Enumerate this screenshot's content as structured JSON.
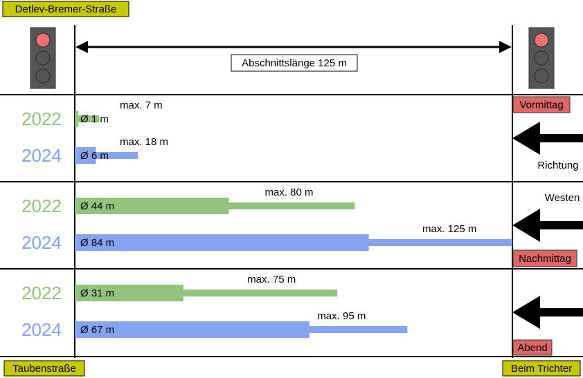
{
  "street_top": "Detlev-Bremer-Straße",
  "street_bottom_left": "Taubenstraße",
  "street_bottom_right": "Beim Trichter",
  "scale": {
    "value": 125,
    "label": "Abschnittslänge 125 m"
  },
  "direction": [
    "Richtung",
    "Westen"
  ],
  "colors": {
    "2022": "#93c47d",
    "2024": "#84a3f0"
  },
  "periods": [
    {
      "name": "Vormittag",
      "rows": [
        {
          "year": "2022",
          "avg": 1,
          "avg_label": "Ø 1 m",
          "max": 7,
          "max_label": "max. 7 m"
        },
        {
          "year": "2024",
          "avg": 6,
          "avg_label": "Ø 6 m",
          "max": 18,
          "max_label": "max. 18 m"
        }
      ]
    },
    {
      "name": "Nachmittag",
      "rows": [
        {
          "year": "2022",
          "avg": 44,
          "avg_label": "Ø 44 m",
          "max": 80,
          "max_label": "max. 80 m"
        },
        {
          "year": "2024",
          "avg": 84,
          "avg_label": "Ø 84 m",
          "max": 125,
          "max_label": "max. 125 m"
        }
      ]
    },
    {
      "name": "Abend",
      "rows": [
        {
          "year": "2022",
          "avg": 31,
          "avg_label": "Ø 31 m",
          "max": 75,
          "max_label": "max. 75 m"
        },
        {
          "year": "2024",
          "avg": 67,
          "avg_label": "Ø 67 m",
          "max": 95,
          "max_label": "max. 95 m"
        }
      ]
    }
  ]
}
